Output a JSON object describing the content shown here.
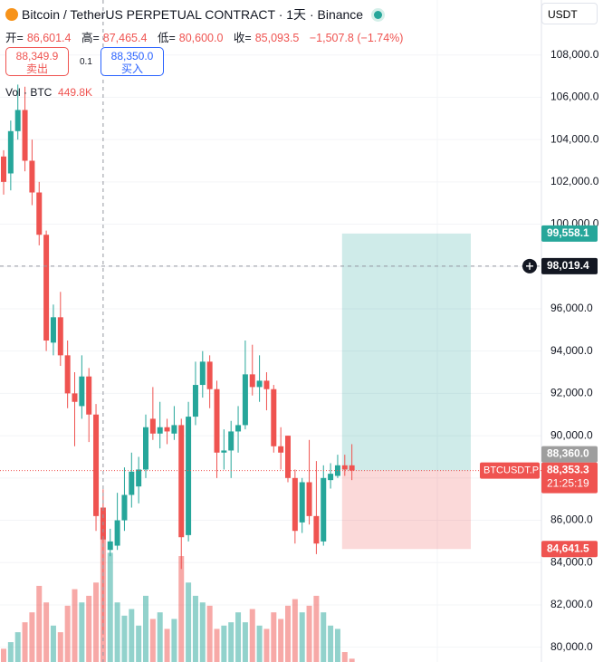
{
  "header": {
    "title": "Bitcoin / TetherUS PERPETUAL CONTRACT · 1天 · Binance",
    "currency": "USDT",
    "ohlc": [
      {
        "key": "开=",
        "value": "86,601.4"
      },
      {
        "key": "高=",
        "value": "87,465.4"
      },
      {
        "key": "低=",
        "value": "80,600.0"
      },
      {
        "key": "收=",
        "value": "85,093.5"
      }
    ],
    "change": "−1,507.8 (−1.74%)",
    "volume_title": "Vol · BTC",
    "volume_value": "449.8K"
  },
  "trade": {
    "sell_price": "88,349.9",
    "sell_label": "卖出",
    "spread": "0.1",
    "buy_price": "88,350.0",
    "buy_label": "买入"
  },
  "chart_data": {
    "type": "candlestick",
    "categories": [
      null,
      null,
      null,
      null,
      null,
      null,
      null,
      null,
      null,
      null,
      null,
      null,
      null,
      null,
      null,
      null,
      null,
      null,
      null,
      null,
      null,
      null,
      null,
      null,
      null,
      null,
      null,
      null,
      null,
      null,
      null,
      null,
      null,
      null,
      null,
      null,
      null,
      null,
      null,
      null,
      null,
      null,
      null,
      null,
      null,
      null,
      null,
      null,
      null,
      null
    ],
    "open": [
      103200,
      102400,
      104400,
      105400,
      103000,
      101500,
      99500,
      94400,
      95600,
      93800,
      92000,
      91400,
      92800,
      91000,
      86601.4,
      84600,
      84800,
      86000,
      87200,
      87600,
      88400,
      90800,
      90100,
      90400,
      90100,
      90500,
      85300,
      90900,
      92400,
      93500,
      92200,
      89200,
      89300,
      90200,
      90500,
      92900,
      92300,
      92600,
      92200,
      89500,
      90000,
      88000,
      85900,
      87800,
      86200,
      85000,
      87900,
      88100,
      88600,
      88600
    ],
    "high": [
      103500,
      104900,
      106600,
      106500,
      104000,
      102000,
      99700,
      96200,
      96800,
      94500,
      93000,
      93800,
      93200,
      91500,
      87465.4,
      85600,
      87300,
      88500,
      89200,
      89000,
      91000,
      92300,
      91600,
      90800,
      91400,
      90800,
      91600,
      93500,
      94000,
      93800,
      92600,
      90300,
      90700,
      91400,
      94500,
      94300,
      93800,
      93000,
      92400,
      90400,
      90000,
      88400,
      88000,
      89800,
      88800,
      88600,
      88700,
      89100,
      89100,
      89600
    ],
    "low": [
      101400,
      101600,
      104000,
      102500,
      100900,
      99000,
      94000,
      93800,
      93300,
      91300,
      89500,
      90800,
      89700,
      85500,
      80600,
      84300,
      84600,
      85500,
      86600,
      86800,
      88000,
      89800,
      89400,
      89600,
      89800,
      83700,
      85000,
      90500,
      91800,
      91300,
      88000,
      88400,
      88000,
      89200,
      90300,
      91900,
      91600,
      91200,
      89200,
      88400,
      87800,
      84900,
      85400,
      85800,
      84400,
      84800,
      87500,
      88000,
      88100,
      87900
    ],
    "close": [
      102000,
      104400,
      105400,
      103000,
      101500,
      99500,
      94500,
      95600,
      93800,
      92000,
      91600,
      92800,
      91000,
      86200,
      85093.5,
      85000,
      86000,
      87200,
      88300,
      88400,
      90400,
      90100,
      90400,
      90200,
      90500,
      85200,
      90900,
      92400,
      93500,
      92200,
      89200,
      89300,
      90200,
      90500,
      92900,
      92300,
      92600,
      92200,
      89500,
      89200,
      88000,
      85500,
      87800,
      86200,
      84900,
      88000,
      88200,
      88600,
      88400,
      88353.3
    ],
    "volume": [
      40000,
      60000,
      90000,
      120000,
      150000,
      230000,
      180000,
      110000,
      90000,
      170000,
      220000,
      180000,
      200000,
      240000,
      449800,
      330000,
      180000,
      140000,
      160000,
      110000,
      200000,
      130000,
      150000,
      100000,
      130000,
      320000,
      240000,
      200000,
      180000,
      170000,
      100000,
      110000,
      120000,
      150000,
      120000,
      160000,
      110000,
      100000,
      150000,
      130000,
      170000,
      190000,
      150000,
      170000,
      200000,
      150000,
      110000,
      100000,
      30000,
      10000
    ],
    "volume_ylim": [
      0,
      2000000
    ],
    "up_color": "#26a69a",
    "down_color": "#ef5350",
    "ylim": [
      79300,
      110600
    ],
    "yticks": [
      {
        "value": 80000,
        "label": "80,000.0"
      },
      {
        "value": 82000,
        "label": "82,000.0"
      },
      {
        "value": 84000,
        "label": "84,000.0"
      },
      {
        "value": 86000,
        "label": "86,000.0"
      },
      {
        "value": 88000,
        "label": "88,000.0"
      },
      {
        "value": 90000,
        "label": "90,000.0"
      },
      {
        "value": 92000,
        "label": "92,000.0"
      },
      {
        "value": 94000,
        "label": "94,000.0"
      },
      {
        "value": 96000,
        "label": "96,000.0"
      },
      {
        "value": 98000,
        "label": "98,000.0"
      },
      {
        "value": 100000,
        "label": "100,000.0"
      },
      {
        "value": 102000,
        "label": "102,000.0"
      },
      {
        "value": 104000,
        "label": "104,000.0"
      },
      {
        "value": 106000,
        "label": "106,000.0"
      },
      {
        "value": 108000,
        "label": "108,000.0"
      }
    ],
    "grid": true,
    "position": {
      "target": 99558.1,
      "stop": 84641.5,
      "start_index": 48,
      "target_color": "#26a69a",
      "stop_color": "#ef5350"
    },
    "crosshair": {
      "index": 14,
      "price": 98019.4
    },
    "symbol_tag": "BTCUSDT.P",
    "countdown": "21:25:19",
    "price_labels": [
      {
        "value": 99558.1,
        "label": "99,558.1",
        "color": "#26a69a"
      },
      {
        "value": 98019.4,
        "label": "98,019.4",
        "color": "#131722"
      },
      {
        "value": 88353.3,
        "label": "88,353.3",
        "color": "#ef5350"
      },
      {
        "value": 88360.0,
        "label": "88,360.0",
        "color": "#9e9e9e"
      },
      {
        "value": 84641.5,
        "label": "84,641.5",
        "color": "#ef5350"
      }
    ]
  }
}
